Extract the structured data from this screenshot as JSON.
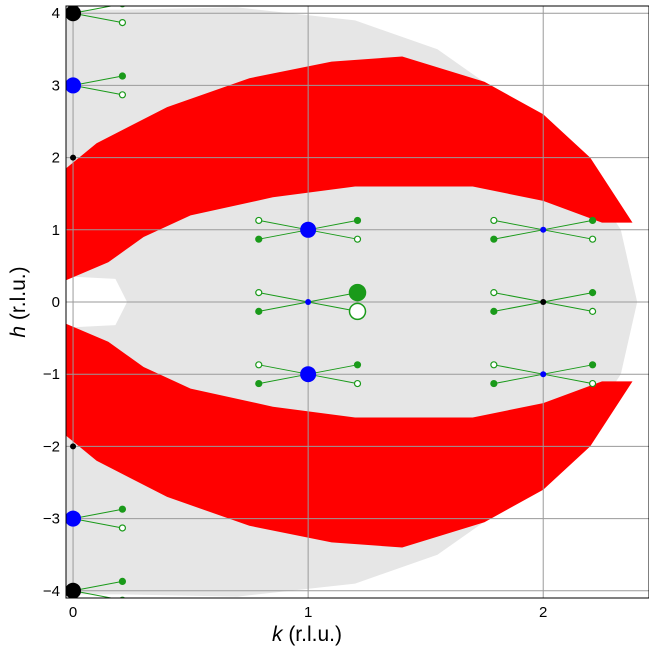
{
  "chart_data": {
    "type": "scatter",
    "title": "",
    "xlabel": {
      "var": "k",
      "unit": " (r.l.u.)"
    },
    "ylabel": {
      "var": "h",
      "unit": " (r.l.u.)"
    },
    "xlim": [
      -0.03,
      2.45
    ],
    "ylim": [
      -4.1,
      4.1
    ],
    "grid": true,
    "x_ticks": [
      0,
      1,
      2
    ],
    "y_ticks": [
      4,
      3,
      2,
      1,
      0,
      -1,
      -2,
      -3,
      -4
    ],
    "x_tick_labels": [
      "0",
      "1",
      "2"
    ],
    "y_tick_labels": [
      "4",
      "3",
      "2",
      "1",
      "0",
      "−1",
      "−2",
      "−3",
      "−4"
    ],
    "colors": {
      "accessible_region": "#e6e6e6",
      "highlight_region": "#ff0000",
      "blue_peak": "#0000ff",
      "black_peak": "#000000",
      "green_marker": "#1a9a1a",
      "grid": "#9a9a9a"
    },
    "regions": [
      {
        "name": "accessible region (light gray)",
        "color": "#e6e6e6",
        "outer_boundary": [
          [
            0.22,
            4.05
          ],
          [
            0.7,
            4.08
          ],
          [
            1.2,
            3.9
          ],
          [
            1.55,
            3.5
          ],
          [
            1.9,
            2.7
          ],
          [
            2.15,
            1.9
          ],
          [
            2.33,
            1.0
          ],
          [
            2.4,
            0.0
          ],
          [
            2.33,
            -1.0
          ],
          [
            2.15,
            -1.9
          ],
          [
            1.9,
            -2.7
          ],
          [
            1.55,
            -3.5
          ],
          [
            1.2,
            -3.9
          ],
          [
            0.7,
            -4.08
          ],
          [
            0.22,
            -4.05
          ]
        ],
        "hole_near_origin": [
          [
            0.0,
            0.35
          ],
          [
            0.18,
            0.32
          ],
          [
            0.23,
            0.0
          ],
          [
            0.18,
            -0.32
          ],
          [
            0.0,
            -0.35
          ]
        ]
      },
      {
        "name": "upper band (red)",
        "color": "#ff0000",
        "outer_boundary": [
          [
            -0.03,
            1.85
          ],
          [
            0.1,
            2.2
          ],
          [
            0.4,
            2.7
          ],
          [
            0.75,
            3.1
          ],
          [
            1.1,
            3.33
          ],
          [
            1.4,
            3.4
          ],
          [
            1.75,
            3.05
          ],
          [
            2.0,
            2.6
          ],
          [
            2.2,
            2.0
          ],
          [
            2.38,
            1.1
          ]
        ],
        "inner_boundary": [
          [
            2.25,
            1.1
          ],
          [
            2.0,
            1.4
          ],
          [
            1.7,
            1.6
          ],
          [
            1.2,
            1.6
          ],
          [
            0.85,
            1.45
          ],
          [
            0.5,
            1.2
          ],
          [
            0.3,
            0.9
          ],
          [
            0.15,
            0.55
          ],
          [
            -0.03,
            0.3
          ]
        ]
      },
      {
        "name": "lower band (red)",
        "color": "#ff0000",
        "outer_boundary": [
          [
            -0.03,
            -1.85
          ],
          [
            0.1,
            -2.2
          ],
          [
            0.4,
            -2.7
          ],
          [
            0.75,
            -3.1
          ],
          [
            1.1,
            -3.33
          ],
          [
            1.4,
            -3.4
          ],
          [
            1.75,
            -3.05
          ],
          [
            2.0,
            -2.6
          ],
          [
            2.2,
            -2.0
          ],
          [
            2.38,
            -1.1
          ]
        ],
        "inner_boundary": [
          [
            2.25,
            -1.1
          ],
          [
            2.0,
            -1.4
          ],
          [
            1.7,
            -1.6
          ],
          [
            1.2,
            -1.6
          ],
          [
            0.85,
            -1.45
          ],
          [
            0.5,
            -1.2
          ],
          [
            0.3,
            -0.9
          ],
          [
            0.15,
            -0.55
          ],
          [
            -0.03,
            -0.3
          ]
        ]
      }
    ],
    "peaks": [
      {
        "k": 0,
        "h": 4,
        "color": "black",
        "size": "large"
      },
      {
        "k": 0,
        "h": 3,
        "color": "blue",
        "size": "large"
      },
      {
        "k": 0,
        "h": 2,
        "color": "black",
        "size": "small"
      },
      {
        "k": 0,
        "h": -2,
        "color": "black",
        "size": "small"
      },
      {
        "k": 0,
        "h": -3,
        "color": "blue",
        "size": "large"
      },
      {
        "k": 0,
        "h": -4,
        "color": "black",
        "size": "large"
      },
      {
        "k": 1,
        "h": 1,
        "color": "blue",
        "size": "large"
      },
      {
        "k": 1,
        "h": 0,
        "color": "blue",
        "size": "small"
      },
      {
        "k": 1,
        "h": -1,
        "color": "blue",
        "size": "large"
      },
      {
        "k": 2,
        "h": 1,
        "color": "blue",
        "size": "small"
      },
      {
        "k": 2,
        "h": 0,
        "color": "black",
        "size": "small"
      },
      {
        "k": 2,
        "h": -1,
        "color": "blue",
        "size": "small"
      }
    ],
    "arm_sets": [
      {
        "k": 0,
        "h": 4,
        "sides": "right"
      },
      {
        "k": 0,
        "h": 3,
        "sides": "right"
      },
      {
        "k": 0,
        "h": -3,
        "sides": "right"
      },
      {
        "k": 0,
        "h": -4,
        "sides": "right"
      },
      {
        "k": 1,
        "h": 1,
        "sides": "both"
      },
      {
        "k": 1,
        "h": 0,
        "sides": "both"
      },
      {
        "k": 1,
        "h": -1,
        "sides": "both"
      },
      {
        "k": 2,
        "h": 1,
        "sides": "both"
      },
      {
        "k": 2,
        "h": 0,
        "sides": "both"
      },
      {
        "k": 2,
        "h": -1,
        "sides": "both"
      }
    ],
    "arm": {
      "dk": 0.21,
      "dh": 0.13
    },
    "green_markers": [
      {
        "k": 1.21,
        "h": 0.13,
        "filled": true
      },
      {
        "k": 1.21,
        "h": -0.13,
        "filled": false
      }
    ]
  }
}
